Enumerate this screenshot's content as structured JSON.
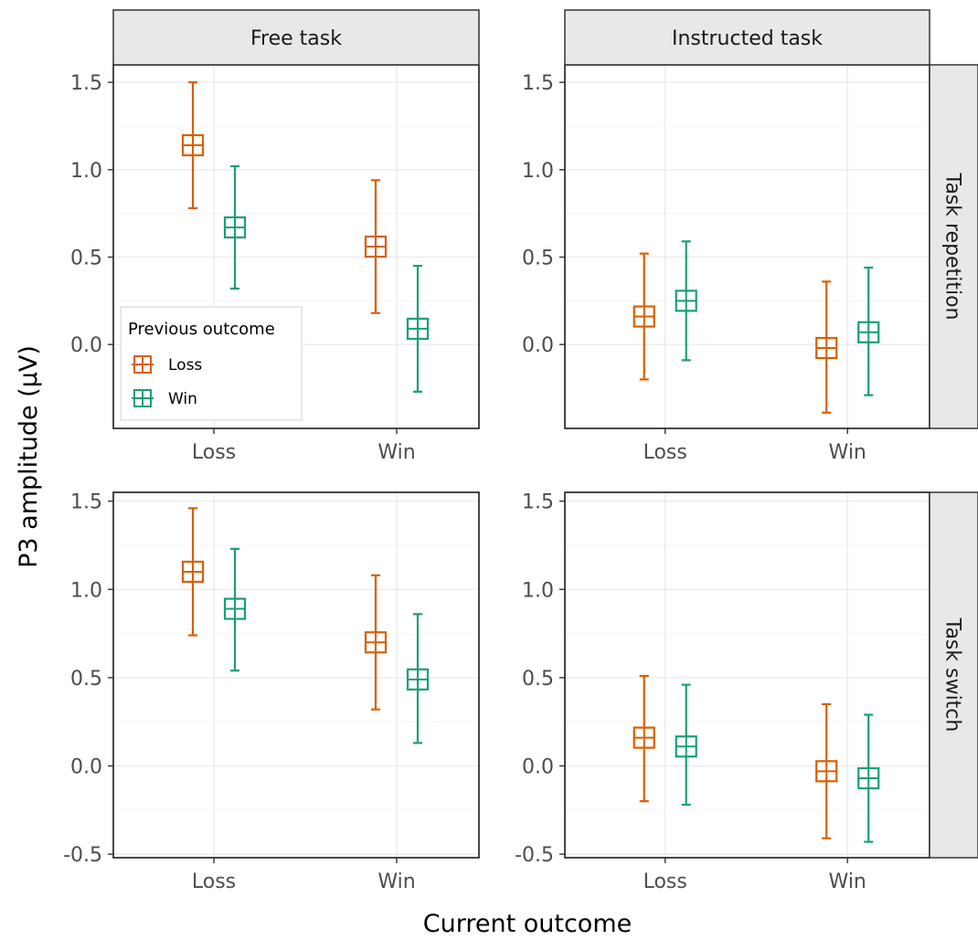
{
  "chart_data": {
    "type": "scatter",
    "subtype": "point-with-error-bars, faceted grid",
    "xlabel": "Current outcome",
    "ylabel": "P3 amplitude (µV)",
    "x_categories": [
      "Loss",
      "Win"
    ],
    "col_facets": [
      "Free task",
      "Instructed task"
    ],
    "row_facets": [
      "Task repetition",
      "Task switch"
    ],
    "legend": {
      "title": "Previous outcome",
      "placement": "inside bottom-left of top-left panel",
      "entries": [
        {
          "label": "Loss",
          "color": "#D95F02"
        },
        {
          "label": "Win",
          "color": "#1B9E77"
        }
      ]
    },
    "rows": [
      {
        "ylim": [
          -0.48,
          1.6
        ],
        "yticks": [
          0.0,
          0.5,
          1.0,
          1.5
        ],
        "ytick_labels": [
          "0.0",
          "0.5",
          "1.0",
          "1.5"
        ],
        "panels": [
          {
            "col": "Free task",
            "series": [
              {
                "name": "Loss",
                "points": [
                  {
                    "x": "Loss",
                    "y": 1.14,
                    "lower": 0.78,
                    "upper": 1.5
                  },
                  {
                    "x": "Win",
                    "y": 0.56,
                    "lower": 0.18,
                    "upper": 0.94
                  }
                ]
              },
              {
                "name": "Win",
                "points": [
                  {
                    "x": "Loss",
                    "y": 0.67,
                    "lower": 0.32,
                    "upper": 1.02
                  },
                  {
                    "x": "Win",
                    "y": 0.09,
                    "lower": -0.27,
                    "upper": 0.45
                  }
                ]
              }
            ]
          },
          {
            "col": "Instructed task",
            "series": [
              {
                "name": "Loss",
                "points": [
                  {
                    "x": "Loss",
                    "y": 0.16,
                    "lower": -0.2,
                    "upper": 0.52
                  },
                  {
                    "x": "Win",
                    "y": -0.02,
                    "lower": -0.39,
                    "upper": 0.36
                  }
                ]
              },
              {
                "name": "Win",
                "points": [
                  {
                    "x": "Loss",
                    "y": 0.25,
                    "lower": -0.09,
                    "upper": 0.59
                  },
                  {
                    "x": "Win",
                    "y": 0.07,
                    "lower": -0.29,
                    "upper": 0.44
                  }
                ]
              }
            ]
          }
        ]
      },
      {
        "ylim": [
          -0.52,
          1.55
        ],
        "yticks": [
          -0.5,
          0.0,
          0.5,
          1.0,
          1.5
        ],
        "ytick_labels": [
          "-0.5",
          "0.0",
          "0.5",
          "1.0",
          "1.5"
        ],
        "panels": [
          {
            "col": "Free task",
            "series": [
              {
                "name": "Loss",
                "points": [
                  {
                    "x": "Loss",
                    "y": 1.1,
                    "lower": 0.74,
                    "upper": 1.46
                  },
                  {
                    "x": "Win",
                    "y": 0.7,
                    "lower": 0.32,
                    "upper": 1.08
                  }
                ]
              },
              {
                "name": "Win",
                "points": [
                  {
                    "x": "Loss",
                    "y": 0.89,
                    "lower": 0.54,
                    "upper": 1.23
                  },
                  {
                    "x": "Win",
                    "y": 0.49,
                    "lower": 0.13,
                    "upper": 0.86
                  }
                ]
              }
            ]
          },
          {
            "col": "Instructed task",
            "series": [
              {
                "name": "Loss",
                "points": [
                  {
                    "x": "Loss",
                    "y": 0.16,
                    "lower": -0.2,
                    "upper": 0.51
                  },
                  {
                    "x": "Win",
                    "y": -0.03,
                    "lower": -0.41,
                    "upper": 0.35
                  }
                ]
              },
              {
                "name": "Win",
                "points": [
                  {
                    "x": "Loss",
                    "y": 0.11,
                    "lower": -0.22,
                    "upper": 0.46
                  },
                  {
                    "x": "Win",
                    "y": -0.07,
                    "lower": -0.43,
                    "upper": 0.29
                  }
                ]
              }
            ]
          }
        ]
      }
    ],
    "grid": true,
    "theme": "light (white panels with gray gridlines and dark frame)"
  }
}
